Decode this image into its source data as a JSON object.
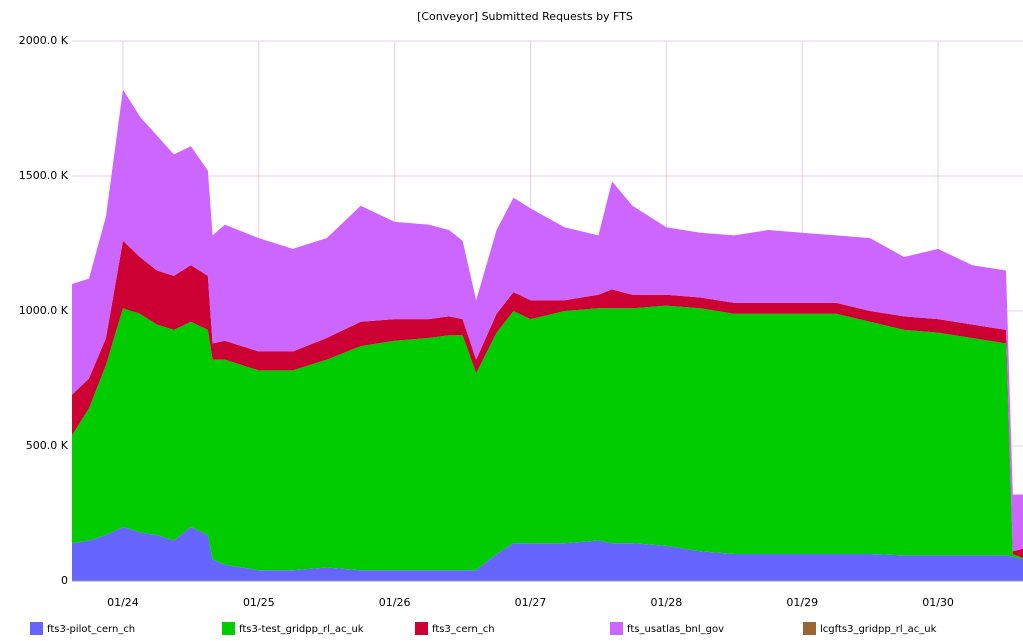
{
  "chart_data": {
    "type": "stacked_area",
    "title": "[Conveyor] Submitted Requests by FTS",
    "x": [
      23.625,
      23.75,
      23.875,
      24.0,
      24.125,
      24.25,
      24.375,
      24.5,
      24.625,
      24.66,
      24.75,
      25.0,
      25.25,
      25.5,
      25.75,
      26.0,
      26.25,
      26.4,
      26.5,
      26.6,
      26.75,
      26.875,
      27.0,
      27.25,
      27.5,
      27.6,
      27.75,
      28.0,
      28.25,
      28.5,
      28.75,
      29.0,
      29.25,
      29.5,
      29.75,
      30.0,
      30.25,
      30.5,
      30.55,
      30.625
    ],
    "series": [
      {
        "name": "fts3-pilot_cern_ch",
        "color": "#6666ff",
        "values": [
          140,
          150,
          170,
          200,
          180,
          170,
          150,
          200,
          170,
          80,
          60,
          40,
          40,
          50,
          40,
          40,
          40,
          40,
          40,
          40,
          100,
          140,
          140,
          140,
          150,
          140,
          140,
          130,
          110,
          100,
          100,
          100,
          100,
          100,
          95,
          95,
          95,
          95,
          90,
          80
        ]
      },
      {
        "name": "fts3-test_gridpp_rl_ac_uk",
        "color": "#00cc00",
        "values": [
          400,
          490,
          630,
          810,
          810,
          780,
          780,
          760,
          760,
          740,
          760,
          740,
          740,
          770,
          830,
          850,
          860,
          870,
          870,
          730,
          820,
          860,
          830,
          860,
          860,
          870,
          870,
          890,
          900,
          890,
          890,
          890,
          890,
          860,
          835,
          825,
          805,
          785,
          10,
          5
        ]
      },
      {
        "name": "fts3_cern_ch",
        "color": "#cc0033",
        "values": [
          150,
          110,
          100,
          250,
          210,
          200,
          200,
          210,
          200,
          60,
          70,
          70,
          70,
          80,
          90,
          80,
          70,
          70,
          60,
          50,
          70,
          70,
          70,
          40,
          50,
          70,
          50,
          40,
          40,
          40,
          40,
          40,
          40,
          40,
          50,
          50,
          50,
          50,
          10,
          35
        ]
      },
      {
        "name": "fts_usatlas_bnl_gov",
        "color": "#cc66ff",
        "values": [
          410,
          370,
          450,
          560,
          520,
          500,
          450,
          440,
          390,
          400,
          430,
          420,
          380,
          370,
          430,
          360,
          350,
          320,
          290,
          220,
          310,
          350,
          340,
          270,
          220,
          400,
          330,
          250,
          240,
          250,
          270,
          260,
          250,
          270,
          220,
          260,
          220,
          220,
          210,
          200
        ]
      },
      {
        "name": "lcgfts3_gridpp_rl_ac_uk",
        "color": "#996633",
        "values": [
          0,
          0,
          0,
          0,
          0,
          0,
          0,
          0,
          0,
          0,
          0,
          0,
          0,
          0,
          0,
          0,
          0,
          0,
          0,
          0,
          0,
          0,
          0,
          0,
          0,
          0,
          0,
          0,
          0,
          0,
          0,
          0,
          0,
          0,
          0,
          0,
          0,
          0,
          0,
          0
        ]
      }
    ],
    "xlim": [
      23.625,
      30.625
    ],
    "xticks": [
      {
        "value": 24,
        "label": "01/24"
      },
      {
        "value": 25,
        "label": "01/25"
      },
      {
        "value": 26,
        "label": "01/26"
      },
      {
        "value": 27,
        "label": "01/27"
      },
      {
        "value": 28,
        "label": "01/28"
      },
      {
        "value": 29,
        "label": "01/29"
      },
      {
        "value": 30,
        "label": "01/30"
      }
    ],
    "ylim": [
      0,
      2000
    ],
    "yticks": [
      0,
      {
        "value": 500,
        "label": "500.0 K"
      },
      {
        "value": 1000,
        "label": "1000.0 K"
      },
      {
        "value": 1500,
        "label": "1500.0 K"
      },
      {
        "value": 2000,
        "label": "2000.0 K"
      }
    ],
    "grid": true
  }
}
